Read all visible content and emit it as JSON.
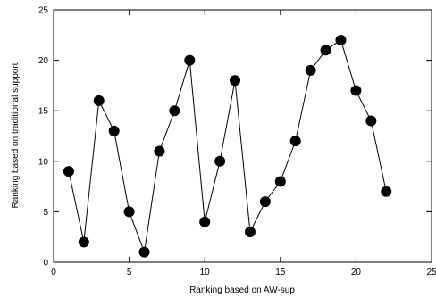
{
  "chart_data": {
    "type": "line",
    "xlabel": "Ranking based on AW-sup",
    "ylabel": "Ranking based on traditional support",
    "xlim": [
      0,
      25
    ],
    "ylim": [
      0,
      25
    ],
    "xticks": [
      0,
      5,
      10,
      15,
      20,
      25
    ],
    "yticks": [
      0,
      5,
      10,
      15,
      20,
      25
    ],
    "grid": false,
    "series": [
      {
        "marker": "filled-circle",
        "color": "#000000",
        "x": [
          1,
          2,
          3,
          4,
          5,
          6,
          7,
          8,
          9,
          10,
          11,
          12,
          13,
          14,
          15,
          16,
          17,
          18,
          19,
          20,
          21,
          22
        ],
        "y": [
          9,
          2,
          16,
          13,
          5,
          1,
          11,
          15,
          20,
          4,
          10,
          18,
          3,
          6,
          8,
          12,
          19,
          21,
          22,
          17,
          14,
          7
        ]
      }
    ]
  }
}
